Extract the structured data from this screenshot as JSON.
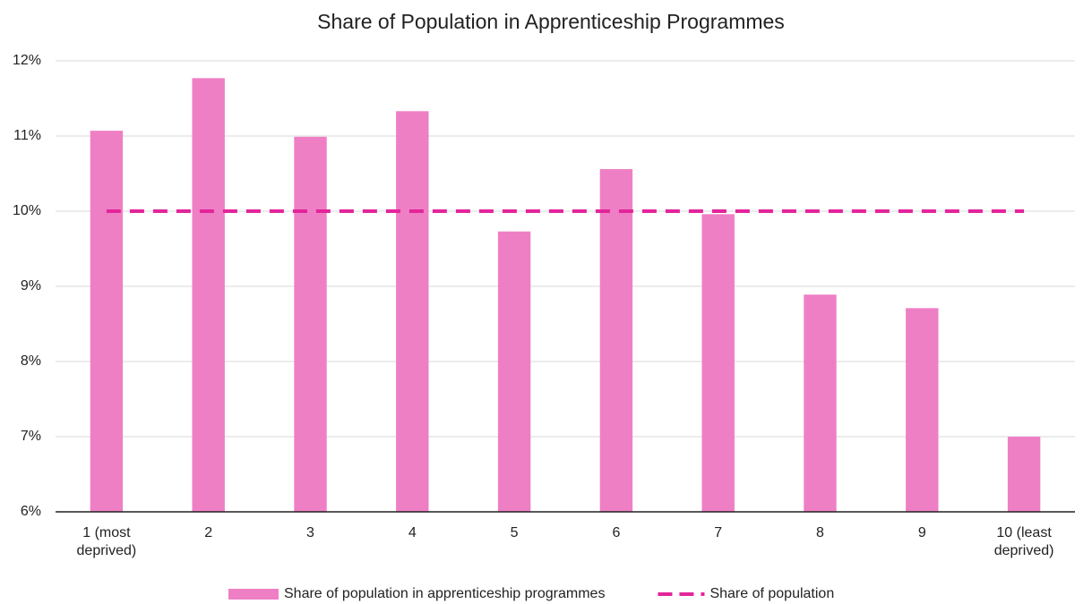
{
  "chart_data": {
    "type": "bar",
    "title": "Share of Population in Apprenticeship Programmes",
    "categories": [
      "1 (most deprived)",
      "2",
      "3",
      "4",
      "5",
      "6",
      "7",
      "8",
      "9",
      "10 (least deprived)"
    ],
    "series": [
      {
        "name": "Share of population in apprenticeship programmes",
        "type": "bar",
        "color": "#ef7fc4",
        "values": [
          11.07,
          11.77,
          10.99,
          11.33,
          9.73,
          10.56,
          9.96,
          8.89,
          8.71,
          7.0
        ]
      },
      {
        "name": "Share of population",
        "type": "line",
        "color": "#e3259a",
        "dashed": true,
        "values": [
          10,
          10,
          10,
          10,
          10,
          10,
          10,
          10,
          10,
          10
        ]
      }
    ],
    "ylim": [
      6,
      12
    ],
    "yticks": [
      {
        "value": 6,
        "label": "6%"
      },
      {
        "value": 7,
        "label": "7%"
      },
      {
        "value": 8,
        "label": "8%"
      },
      {
        "value": 9,
        "label": "9%"
      },
      {
        "value": 10,
        "label": "10%"
      },
      {
        "value": 11,
        "label": "11%"
      },
      {
        "value": 12,
        "label": "12%"
      }
    ],
    "grid": true,
    "legend": "bottom"
  }
}
